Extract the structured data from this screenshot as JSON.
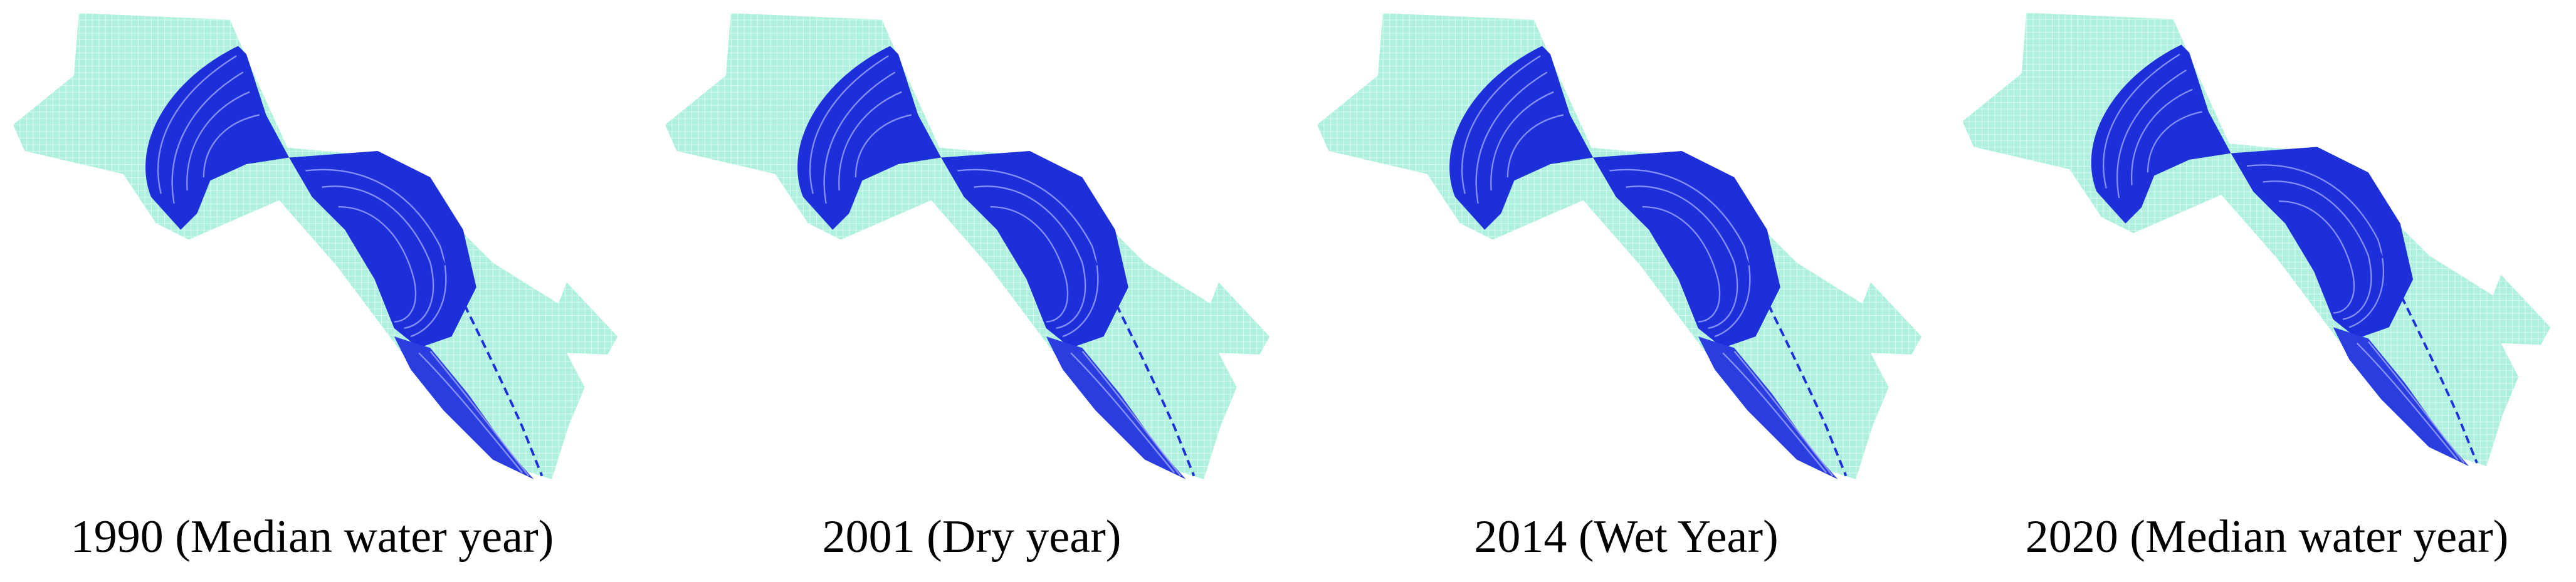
{
  "panels": [
    {
      "caption": "1990 (Median water year)"
    },
    {
      "caption": "2001 (Dry year)"
    },
    {
      "caption": "2014 (Wet Year)"
    },
    {
      "caption": "2020 (Median water year)"
    }
  ]
}
